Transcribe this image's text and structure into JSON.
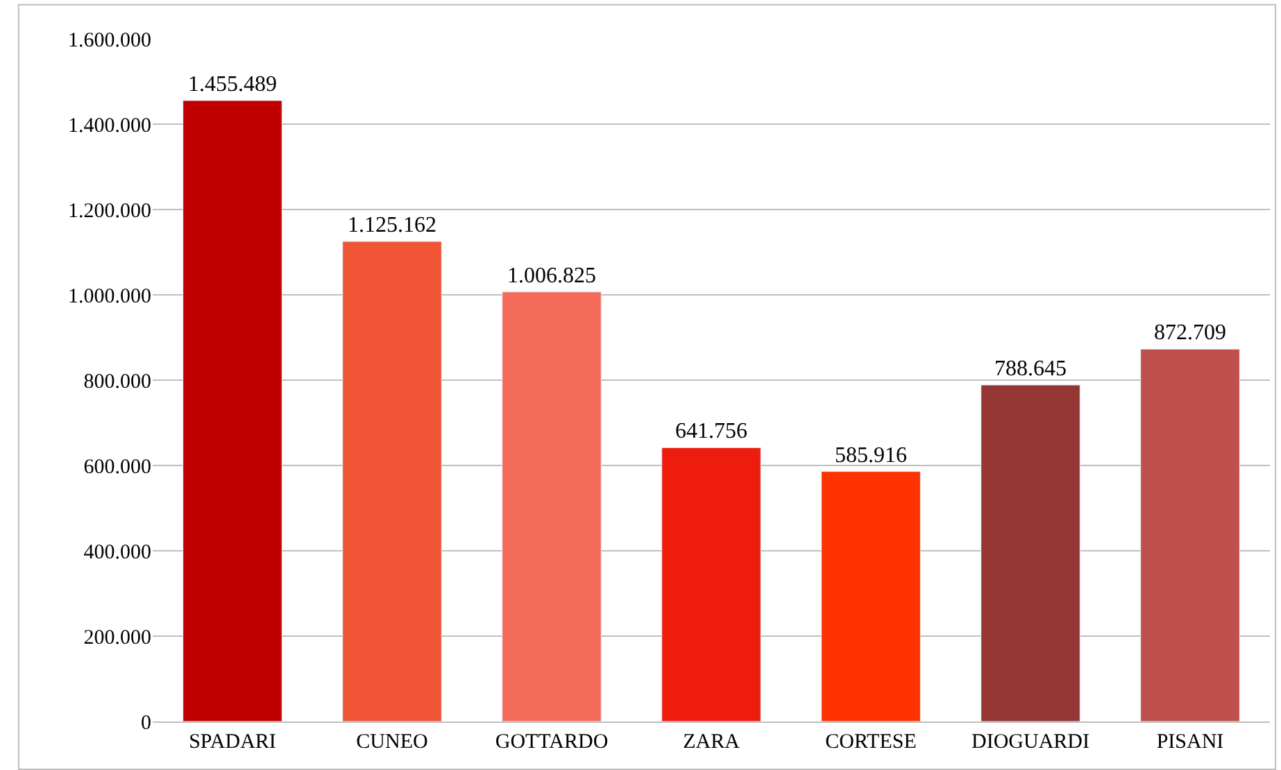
{
  "chart_data": {
    "type": "bar",
    "categories": [
      "SPADARI",
      "CUNEO",
      "GOTTARDO",
      "ZARA",
      "CORTESE",
      "DIOGUARDI",
      "PISANI"
    ],
    "values": [
      1455489,
      1125162,
      1006825,
      641756,
      585916,
      788645,
      872709
    ],
    "colors": [
      "#c00000",
      "#f05535",
      "#f46b5a",
      "#ee1c0c",
      "#ff3300",
      "#943634",
      "#c0504d"
    ],
    "value_labels": [
      "1.455.489",
      "1.125.162",
      "1.006.825",
      "641.756",
      "585.916",
      "788.645",
      "872.709"
    ],
    "ylim": [
      0,
      1600000
    ],
    "yticks": [
      0,
      {
        "value": 200000,
        "label": "200.000"
      },
      {
        "value": 400000,
        "label": "400.000"
      },
      {
        "value": 600000,
        "label": "600.000"
      },
      {
        "value": 800000,
        "label": "800.000"
      },
      {
        "value": 1000000,
        "label": "1.000.000"
      },
      {
        "value": 1200000,
        "label": "1.200.000"
      },
      {
        "value": 1400000,
        "label": "1.400.000"
      },
      {
        "value": 1600000,
        "label": "1.600.000"
      }
    ],
    "grid": "y"
  }
}
